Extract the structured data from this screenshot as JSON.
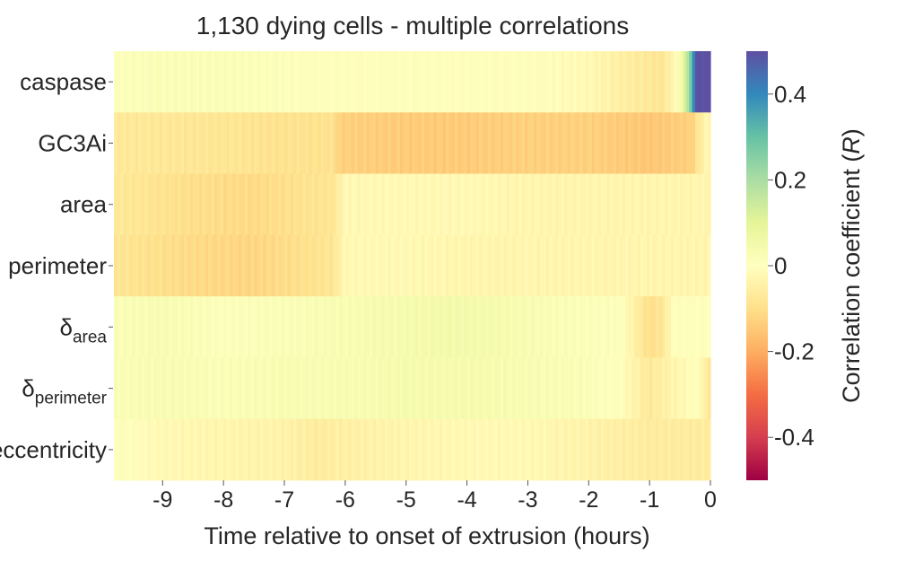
{
  "chart_data": {
    "type": "heatmap",
    "title": "1,130 dying cells - multiple correlations",
    "xlabel": "Time relative to onset of extrusion (hours)",
    "colorbar_label": "Correlation coefficient (R)",
    "colorbar_label_main": "Correlation coefficient (",
    "colorbar_label_var": "R",
    "colorbar_label_close": ")",
    "colormap": "Spectral",
    "vmin": -0.5,
    "vmax": 0.5,
    "colorbar_ticks": [
      "0.4",
      "0.2",
      "0",
      "-0.2",
      "-0.4"
    ],
    "colorbar_tick_values": [
      0.4,
      0.2,
      0,
      -0.2,
      -0.4
    ],
    "x_ticks": [
      "-9",
      "-8",
      "-7",
      "-6",
      "-5",
      "-4",
      "-3",
      "-2",
      "-1",
      "0"
    ],
    "x_tick_values": [
      -9,
      -8,
      -7,
      -6,
      -5,
      -4,
      -3,
      -2,
      -1,
      0
    ],
    "xlim": [
      -9.8,
      0
    ],
    "rows": [
      {
        "label": "caspase",
        "base": null,
        "sub": null
      },
      {
        "label": "GC3Ai",
        "base": null,
        "sub": null
      },
      {
        "label": "area",
        "base": null,
        "sub": null
      },
      {
        "label": "perimeter",
        "base": null,
        "sub": null
      },
      {
        "label": null,
        "base": "δ",
        "sub": "area"
      },
      {
        "label": null,
        "base": "δ",
        "sub": "perimeter"
      },
      {
        "label": "eccentricity",
        "base": null,
        "sub": null
      }
    ],
    "series": [
      {
        "times": [
          -9.8,
          -9.0,
          -8.0,
          -7.0,
          -6.2,
          -5.0,
          -4.0,
          -3.0,
          -2.0,
          -1.3,
          -0.8,
          -0.5,
          -0.4,
          -0.3,
          -0.25,
          0
        ],
        "values": [
          0.01,
          0.02,
          0.02,
          0.01,
          0.0,
          0.0,
          0.0,
          0.0,
          -0.02,
          -0.06,
          -0.08,
          0.0,
          0.15,
          0.3,
          0.5,
          0.5
        ]
      },
      {
        "times": [
          -9.8,
          -8.0,
          -7.0,
          -6.2,
          -6.1,
          -5.0,
          -4.0,
          -3.0,
          -2.0,
          -1.0,
          -0.3,
          -0.15,
          0
        ],
        "values": [
          -0.07,
          -0.08,
          -0.09,
          -0.09,
          -0.13,
          -0.14,
          -0.14,
          -0.13,
          -0.13,
          -0.15,
          -0.13,
          -0.05,
          -0.02
        ]
      },
      {
        "times": [
          -9.8,
          -8.5,
          -7.5,
          -6.2,
          -6.0,
          -5.0,
          -4.0,
          -3.0,
          -2.0,
          -1.0,
          0
        ],
        "values": [
          -0.07,
          -0.1,
          -0.11,
          -0.08,
          -0.02,
          -0.02,
          -0.02,
          -0.03,
          -0.03,
          -0.03,
          -0.03
        ]
      },
      {
        "times": [
          -9.8,
          -8.5,
          -7.5,
          -6.2,
          -6.0,
          -5.0,
          -4.0,
          -3.0,
          -2.0,
          -1.0,
          0
        ],
        "values": [
          -0.08,
          -0.11,
          -0.12,
          -0.08,
          -0.02,
          -0.02,
          -0.03,
          -0.03,
          -0.03,
          -0.03,
          -0.03
        ]
      },
      {
        "times": [
          -9.8,
          -9.0,
          -8.0,
          -7.0,
          -6.0,
          -5.0,
          -4.3,
          -3.5,
          -2.5,
          -1.5,
          -1.0,
          -0.8,
          -0.6,
          0
        ],
        "values": [
          0.02,
          0.03,
          0.01,
          0.02,
          0.03,
          0.04,
          0.05,
          0.04,
          0.02,
          0.01,
          -0.1,
          -0.08,
          0.0,
          0.0
        ]
      },
      {
        "times": [
          -9.8,
          -9.0,
          -8.0,
          -7.0,
          -6.0,
          -5.0,
          -4.0,
          -3.0,
          -2.0,
          -1.5,
          -1.0,
          -0.7,
          -0.2,
          -0.05,
          0
        ],
        "values": [
          0.02,
          0.03,
          0.02,
          0.03,
          0.03,
          0.04,
          0.04,
          0.03,
          0.02,
          0.0,
          -0.07,
          -0.04,
          0.0,
          -0.07,
          -0.07
        ]
      },
      {
        "times": [
          -9.8,
          -9.0,
          -8.0,
          -7.0,
          -6.5,
          -5.0,
          -4.0,
          -3.0,
          -2.0,
          -1.0,
          0
        ],
        "values": [
          0.01,
          -0.02,
          -0.03,
          -0.04,
          -0.06,
          -0.03,
          -0.02,
          -0.02,
          -0.04,
          -0.06,
          -0.06
        ]
      }
    ]
  }
}
